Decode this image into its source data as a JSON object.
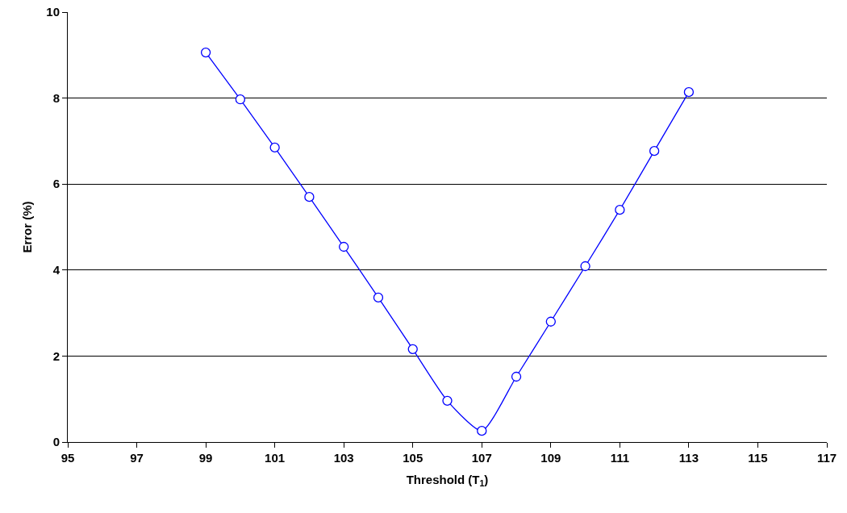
{
  "chart_data": {
    "type": "line",
    "xlabel": "Threshold (T$_{1}$)",
    "ylabel": "Error (%)",
    "x": [
      99,
      100,
      101,
      102,
      103,
      104,
      105,
      106,
      107,
      108,
      109,
      110,
      111,
      112,
      113
    ],
    "series": [
      {
        "color": "#0000ff",
        "values": [
          9.06,
          7.97,
          6.85,
          5.7,
          4.54,
          3.36,
          2.16,
          0.96,
          0.26,
          1.52,
          2.8,
          4.09,
          5.4,
          6.77,
          8.14
        ]
      }
    ],
    "xlim": [
      95,
      117
    ],
    "xticks": [
      95,
      97,
      99,
      101,
      103,
      105,
      107,
      109,
      111,
      113,
      115,
      117
    ],
    "ylim": [
      0,
      10
    ],
    "yticks": [
      0,
      2,
      4,
      6,
      8,
      10
    ],
    "grid": "y",
    "legend": false,
    "marker": "circle",
    "line_style": "solid"
  }
}
